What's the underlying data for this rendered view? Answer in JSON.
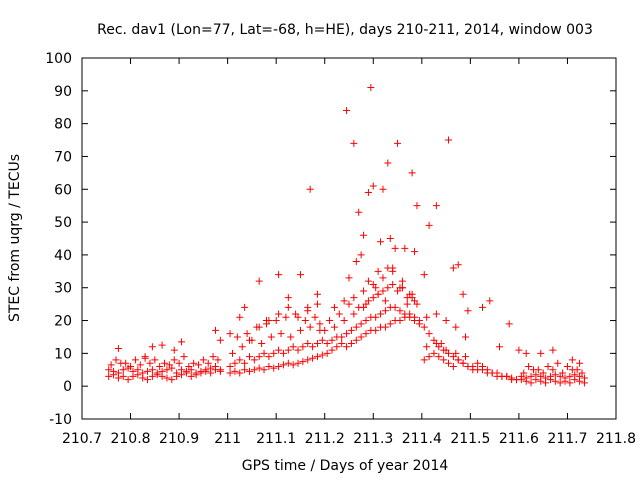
{
  "chart_data": {
    "type": "scatter",
    "title": "Rec. dav1 (Lon=77, Lat=-68, h=HE), days 210-211, 2014, window 003",
    "xlabel": "GPS time / Days of year 2014",
    "ylabel": "STEC from uqrg / TECUs",
    "xlim": [
      210.7,
      211.8
    ],
    "ylim": [
      -10,
      100
    ],
    "xticks": [
      "210.7",
      "210.8",
      "210.9",
      "211",
      "211.1",
      "211.2",
      "211.3",
      "211.4",
      "211.5",
      "211.6",
      "211.7",
      "211.8"
    ],
    "yticks": [
      "-10",
      "0",
      "10",
      "20",
      "30",
      "40",
      "50",
      "60",
      "70",
      "80",
      "90",
      "100"
    ],
    "marker": "+",
    "color": "#ff0000",
    "grid": false,
    "legend": "none",
    "series": [
      {
        "x": [
          210.755,
          210.765,
          210.775,
          210.785,
          210.795,
          210.805,
          210.815,
          210.825,
          210.835,
          210.845,
          210.855,
          210.865,
          210.875,
          210.885,
          210.895,
          210.905,
          210.915,
          210.925,
          210.935,
          210.945,
          210.955,
          210.965,
          210.975,
          210.985,
          210.755,
          210.765,
          210.775,
          210.785,
          210.795,
          210.805,
          210.815,
          210.825,
          210.835,
          210.845,
          210.855,
          210.865,
          210.875,
          210.885,
          210.895,
          210.905,
          210.915,
          210.925,
          210.935,
          210.945,
          210.955,
          210.965,
          210.975,
          210.985,
          210.76,
          210.78,
          210.8,
          210.82,
          210.84,
          210.86,
          210.88,
          210.9,
          210.92,
          210.94,
          210.96,
          210.98,
          210.77,
          210.79,
          210.81,
          210.83,
          210.85,
          210.87,
          210.89,
          210.91,
          210.93,
          210.95,
          210.97,
          210.775,
          210.83,
          210.845,
          210.865,
          210.89,
          210.905,
          210.975,
          210.985,
          211.005,
          211.015,
          211.025,
          211.035,
          211.045,
          211.055,
          211.065,
          211.075,
          211.085,
          211.095,
          211.105,
          211.115,
          211.125,
          211.135,
          211.145,
          211.155,
          211.165,
          211.175,
          211.185,
          211.195,
          211.005,
          211.015,
          211.025,
          211.035,
          211.045,
          211.055,
          211.065,
          211.075,
          211.085,
          211.095,
          211.105,
          211.115,
          211.125,
          211.135,
          211.145,
          211.155,
          211.165,
          211.175,
          211.185,
          211.195,
          211.01,
          211.03,
          211.05,
          211.07,
          211.09,
          211.11,
          211.13,
          211.15,
          211.17,
          211.19,
          211.02,
          211.04,
          211.06,
          211.08,
          211.1,
          211.12,
          211.14,
          211.16,
          211.18,
          211.005,
          211.025,
          211.045,
          211.065,
          211.085,
          211.105,
          211.125,
          211.145,
          211.165,
          211.185,
          211.035,
          211.065,
          211.08,
          211.105,
          211.125,
          211.15,
          211.165,
          211.17,
          211.185,
          211.19,
          211.205,
          211.215,
          211.225,
          211.235,
          211.245,
          211.255,
          211.265,
          211.275,
          211.285,
          211.295,
          211.305,
          211.315,
          211.325,
          211.335,
          211.345,
          211.355,
          211.365,
          211.375,
          211.385,
          211.395,
          211.205,
          211.215,
          211.225,
          211.235,
          211.245,
          211.255,
          211.265,
          211.275,
          211.285,
          211.295,
          211.305,
          211.315,
          211.325,
          211.335,
          211.345,
          211.355,
          211.365,
          211.375,
          211.385,
          211.395,
          211.21,
          211.23,
          211.25,
          211.27,
          211.29,
          211.31,
          211.33,
          211.35,
          211.37,
          211.39,
          211.22,
          211.24,
          211.26,
          211.28,
          211.3,
          211.32,
          211.34,
          211.36,
          211.38,
          211.2,
          211.22,
          211.24,
          211.26,
          211.28,
          211.3,
          211.32,
          211.34,
          211.36,
          211.38,
          211.245,
          211.26,
          211.27,
          211.28,
          211.29,
          211.295,
          211.3,
          211.31,
          211.315,
          211.32,
          211.33,
          211.335,
          211.34,
          211.35,
          211.355,
          211.365,
          211.37,
          211.38,
          211.385,
          211.39,
          211.25,
          211.265,
          211.275,
          211.285,
          211.29,
          211.305,
          211.31,
          211.325,
          211.33,
          211.345,
          211.36,
          211.375,
          211.385,
          211.405,
          211.415,
          211.425,
          211.435,
          211.445,
          211.455,
          211.465,
          211.475,
          211.485,
          211.495,
          211.505,
          211.515,
          211.525,
          211.535,
          211.545,
          211.555,
          211.565,
          211.575,
          211.585,
          211.595,
          211.405,
          211.415,
          211.425,
          211.435,
          211.445,
          211.455,
          211.465,
          211.475,
          211.485,
          211.495,
          211.505,
          211.515,
          211.525,
          211.535,
          211.545,
          211.555,
          211.565,
          211.575,
          211.585,
          211.595,
          211.41,
          211.43,
          211.45,
          211.47,
          211.49,
          211.41,
          211.43,
          211.45,
          211.47,
          211.49,
          211.405,
          211.415,
          211.43,
          211.44,
          211.455,
          211.465,
          211.475,
          211.485,
          211.495,
          211.525,
          211.54,
          211.56,
          211.58,
          211.605,
          211.615,
          211.625,
          211.635,
          211.645,
          211.655,
          211.665,
          211.675,
          211.685,
          211.695,
          211.705,
          211.715,
          211.725,
          211.735,
          211.605,
          211.615,
          211.625,
          211.635,
          211.645,
          211.655,
          211.665,
          211.675,
          211.685,
          211.695,
          211.705,
          211.715,
          211.725,
          211.735,
          211.61,
          211.63,
          211.65,
          211.67,
          211.69,
          211.71,
          211.73,
          211.62,
          211.64,
          211.66,
          211.68,
          211.7,
          211.72,
          211.6,
          211.615,
          211.645,
          211.67,
          211.71,
          211.725
        ],
        "y": [
          3,
          3.5,
          2.5,
          3,
          2,
          3,
          3.5,
          2.5,
          2,
          3,
          3.5,
          3,
          2.5,
          2,
          3,
          3.5,
          4,
          3,
          3.5,
          4,
          4.5,
          4,
          5,
          4.5,
          5,
          4.5,
          4,
          5,
          5.5,
          4.5,
          5,
          4,
          4.5,
          5,
          4,
          4.5,
          5,
          5.5,
          4,
          5,
          4.5,
          5,
          4,
          4.5,
          5,
          5.5,
          6,
          5,
          6.5,
          7,
          6,
          6.5,
          7,
          6,
          6.5,
          7,
          6,
          6.5,
          7,
          8,
          8,
          7,
          8,
          9,
          8,
          7,
          8,
          9,
          7,
          8,
          9,
          11.5,
          8.5,
          12,
          12.5,
          11,
          13.5,
          17,
          14,
          4,
          4.5,
          4,
          5,
          4.5,
          5,
          5.5,
          5,
          6,
          5.5,
          6,
          6.5,
          7,
          6.5,
          7,
          7.5,
          8,
          8.5,
          9,
          9.5,
          6,
          7,
          8,
          7,
          9,
          8,
          9,
          10,
          9,
          10,
          11,
          10,
          11,
          12,
          11,
          12,
          13,
          12,
          13,
          14,
          10,
          12,
          14,
          13,
          15,
          16,
          15,
          17,
          18,
          17,
          15,
          16,
          18,
          19,
          20,
          21,
          22,
          20,
          21,
          16,
          21,
          14,
          18,
          20,
          22,
          24,
          21,
          23,
          25,
          24,
          32,
          20,
          34,
          27,
          34,
          24,
          60,
          28,
          19,
          10,
          11,
          12,
          13,
          12,
          13,
          14,
          15,
          16,
          17,
          17,
          18,
          18,
          19,
          20,
          20,
          21,
          22,
          21,
          20,
          13,
          14,
          15,
          15,
          16,
          17,
          18,
          19,
          20,
          21,
          21,
          22,
          23,
          24,
          24,
          23,
          22,
          21,
          20,
          19,
          20,
          22,
          25,
          24,
          26,
          28,
          30,
          29,
          27,
          25,
          24,
          26,
          27,
          29,
          31,
          33,
          35,
          32,
          28,
          17,
          18,
          20,
          22,
          24,
          27,
          29,
          31,
          30,
          27,
          84,
          74,
          53,
          46,
          59,
          91,
          61,
          35,
          44,
          60,
          68,
          45,
          36,
          74,
          30,
          42,
          25,
          65,
          41,
          55,
          33,
          38,
          40,
          25,
          32,
          30,
          28,
          26,
          36,
          42,
          30,
          28,
          26,
          18,
          16,
          14,
          12,
          11,
          10,
          9,
          8,
          7,
          6,
          6,
          5,
          5,
          4,
          4,
          3,
          3,
          3,
          2.5,
          2,
          8,
          9,
          10,
          9,
          8,
          7,
          6,
          8,
          7,
          6,
          5,
          7,
          6,
          5,
          4,
          4,
          3,
          3,
          2,
          2,
          21,
          22,
          20,
          18,
          15,
          12,
          13,
          11,
          10,
          9,
          34,
          49,
          55,
          13,
          75,
          36,
          37,
          28,
          23,
          24,
          26,
          12,
          19,
          2,
          1.5,
          1,
          2,
          1.5,
          1,
          2,
          1.5,
          1,
          1.5,
          1,
          2,
          1.5,
          1,
          3,
          2.5,
          3,
          3.5,
          3,
          2.5,
          3,
          3.5,
          3,
          2.5,
          3,
          3.5,
          3,
          2.5,
          4,
          5,
          4,
          5,
          4,
          5,
          4,
          6,
          5,
          6,
          7,
          6,
          5,
          11,
          10,
          10,
          11,
          8,
          7
        ]
      }
    ]
  }
}
